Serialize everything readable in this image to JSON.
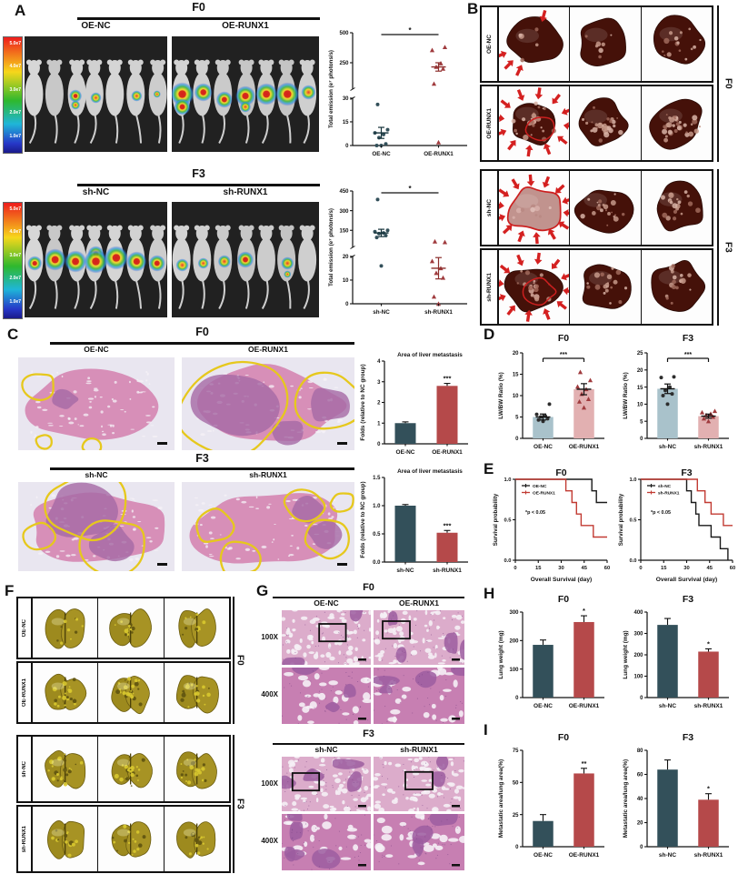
{
  "panelA": {
    "label": "A",
    "colorbar_ticks": [
      "5.0e7",
      "4.0e7",
      "3.0e7",
      "2.0e7",
      "1.0e7"
    ],
    "f0": {
      "title": "F0",
      "col_labels": [
        "OE-NC",
        "OE-RUNX1"
      ]
    },
    "f3": {
      "title": "F3",
      "col_labels": [
        "sh-NC",
        "sh-RUNX1"
      ]
    }
  },
  "panelB": {
    "label": "B",
    "groups": [
      {
        "side_label": "F0",
        "rows": [
          {
            "label": "OE-NC"
          },
          {
            "label": "OE-RUNX1"
          }
        ]
      },
      {
        "side_label": "F3",
        "rows": [
          {
            "label": "sh-NC"
          },
          {
            "label": "sh-RUNX1"
          }
        ]
      }
    ]
  },
  "panelC": {
    "label": "C",
    "f0": {
      "title": "F0",
      "col_labels": [
        "OE-NC",
        "OE-RUNX1"
      ]
    },
    "f3": {
      "title": "F3",
      "col_labels": [
        "sh-NC",
        "sh-RUNX1"
      ]
    }
  },
  "panelD": {
    "label": "D"
  },
  "panelE": {
    "label": "E"
  },
  "panelF": {
    "label": "F",
    "groups": [
      {
        "side_label": "F0",
        "rows": [
          {
            "label": "OE-NC"
          },
          {
            "label": "OE-RUNX1"
          }
        ]
      },
      {
        "side_label": "F3",
        "rows": [
          {
            "label": "sh-NC"
          },
          {
            "label": "sh-RUNX1"
          }
        ]
      }
    ]
  },
  "panelG": {
    "label": "G",
    "f0": {
      "title": "F0",
      "col_labels": [
        "OE-NC",
        "OE-RUNX1"
      ],
      "row_labels": [
        "100X",
        "400X"
      ]
    },
    "f3": {
      "title": "F3",
      "col_labels": [
        "sh-NC",
        "sh-RUNX1"
      ],
      "row_labels": [
        "100X",
        "400X"
      ]
    }
  },
  "panelH": {
    "label": "H"
  },
  "panelI": {
    "label": "I"
  },
  "colors": {
    "bar_teal": "#33505a",
    "bar_red": "#b5494a",
    "bar_teal_light": "#a9c2cb",
    "bar_red_light": "#e2b0b1",
    "point_dark": "#2d2d2d",
    "point_red": "#a03b3e",
    "km_black": "#1a1a1a",
    "km_red": "#c23b33",
    "arrow_red": "#d42020",
    "outline_yellow": "#e6c81c"
  },
  "chart_data": [
    {
      "id": "a_f0",
      "type": "scatter_break",
      "ylabel": "Total emission (e⁷ photons/s)",
      "categories": [
        "OE-NC",
        "OE-RUNX1"
      ],
      "lower_ticks": [
        0,
        15,
        30
      ],
      "upper_ticks": [
        250,
        500
      ],
      "lower_max": 30,
      "upper_max": 500,
      "sig": "*",
      "series": [
        {
          "name": "OE-NC",
          "marker": "circle",
          "points": [
            0,
            0,
            1,
            5,
            7,
            8,
            10,
            26
          ],
          "mean": 8,
          "sem": 3.5
        },
        {
          "name": "OE-RUNX1",
          "marker": "triangle",
          "points": [
            2,
            75,
            200,
            215,
            245,
            355,
            380
          ],
          "mean": 215,
          "sem": 35
        }
      ]
    },
    {
      "id": "a_f3",
      "type": "scatter_break",
      "ylabel": "Total emission (e⁷ photons/s)",
      "categories": [
        "sh-NC",
        "sh-RUNX1"
      ],
      "lower_ticks": [
        0,
        10,
        20
      ],
      "upper_ticks": [
        150,
        300,
        450
      ],
      "lower_max": 20,
      "upper_max": 450,
      "sig": "*",
      "series": [
        {
          "name": "sh-NC",
          "marker": "circle",
          "points": [
            16,
            95,
            110,
            125,
            130,
            140,
            150,
            385
          ],
          "mean": 130,
          "sem": 28
        },
        {
          "name": "sh-RUNX1",
          "marker": "triangle",
          "points": [
            0,
            3,
            11,
            13,
            15,
            18,
            60,
            65
          ],
          "mean": 15,
          "sem": 4.5
        }
      ]
    },
    {
      "id": "c_f0",
      "type": "bar",
      "chart_title": "Area of liver metastasis",
      "ylabel": "Folds (relative to NC group)",
      "categories": [
        "OE-NC",
        "OE-RUNX1"
      ],
      "values": [
        1.0,
        2.8
      ],
      "errors": [
        0.06,
        0.12
      ],
      "ylim": [
        0,
        4
      ],
      "yticks": [
        0,
        1,
        2,
        3,
        4
      ],
      "ytick_labels": [
        "0",
        "1",
        "2",
        "3",
        "4"
      ],
      "sig": "***",
      "sig_on": 1
    },
    {
      "id": "c_f3",
      "type": "bar",
      "chart_title": "Area of liver metastasis",
      "ylabel": "Folds (relative to NC group)",
      "categories": [
        "sh-NC",
        "sh-RUNX1"
      ],
      "values": [
        1.0,
        0.52
      ],
      "errors": [
        0.02,
        0.04
      ],
      "ylim": [
        0,
        1.5
      ],
      "yticks": [
        0,
        0.5,
        1.0,
        1.5
      ],
      "ytick_labels": [
        "0.0",
        "0.5",
        "1.0",
        "1.5"
      ],
      "sig": "***",
      "sig_on": 1
    },
    {
      "id": "d_f0",
      "type": "bar_scatter",
      "panel_title": "F0",
      "ylabel": "LW/BW Ratio (%)",
      "categories": [
        "OE-NC",
        "OE-RUNX1"
      ],
      "means": [
        5,
        11.5
      ],
      "sems": [
        0.7,
        1.3
      ],
      "points": [
        [
          4,
          4.3,
          4.6,
          5,
          5.2,
          5.6,
          8
        ],
        [
          7.2,
          8.6,
          9.2,
          10.4,
          11.5,
          12.1,
          13.6,
          15.5
        ]
      ],
      "ylim": [
        0,
        20
      ],
      "yticks": [
        0,
        5,
        10,
        15,
        20
      ],
      "ytick_labels": [
        "0",
        "5",
        "10",
        "15",
        "20"
      ],
      "sig": "***"
    },
    {
      "id": "d_f3",
      "type": "bar_scatter",
      "panel_title": "F3",
      "ylabel": "LW/BW Ratio (%)",
      "categories": [
        "sh-NC",
        "sh-RUNX1"
      ],
      "means": [
        14.5,
        6.5
      ],
      "sems": [
        1.4,
        0.6
      ],
      "points": [
        [
          10,
          12.5,
          13,
          14,
          15,
          17.8,
          18
        ],
        [
          5,
          5.8,
          6.3,
          6.8,
          7.2,
          7.6,
          8
        ]
      ],
      "ylim": [
        0,
        25
      ],
      "yticks": [
        0,
        5,
        10,
        15,
        20,
        25
      ],
      "ytick_labels": [
        "0",
        "5",
        "10",
        "15",
        "20",
        "25"
      ],
      "sig": "***"
    },
    {
      "id": "e_f0",
      "type": "km",
      "panel_title": "F0",
      "xlabel": "Overall Survival (day)",
      "ylabel": "Survival probability",
      "xlim": [
        0,
        60
      ],
      "xticks": [
        0,
        15,
        30,
        45,
        60
      ],
      "yticks": [
        "0.0",
        "0.5",
        "1.0"
      ],
      "p_text": "*p < 0.05",
      "series": [
        {
          "name": "OE-NC",
          "color": "#1a1a1a",
          "steps": [
            [
              0,
              1
            ],
            [
              50,
              1
            ],
            [
              50,
              0.857
            ],
            [
              53,
              0.857
            ],
            [
              53,
              0.714
            ],
            [
              60,
              0.714
            ]
          ]
        },
        {
          "name": "OE-RUNX1",
          "color": "#c23b33",
          "steps": [
            [
              0,
              1
            ],
            [
              33,
              1
            ],
            [
              33,
              0.857
            ],
            [
              37,
              0.857
            ],
            [
              37,
              0.714
            ],
            [
              40,
              0.714
            ],
            [
              40,
              0.571
            ],
            [
              43,
              0.571
            ],
            [
              43,
              0.429
            ],
            [
              51,
              0.429
            ],
            [
              51,
              0.286
            ],
            [
              60,
              0.286
            ]
          ]
        }
      ]
    },
    {
      "id": "e_f3",
      "type": "km",
      "panel_title": "F3",
      "xlabel": "Overall Survival (day)",
      "ylabel": "Survival probability",
      "xlim": [
        0,
        60
      ],
      "xticks": [
        0,
        15,
        30,
        45,
        60
      ],
      "yticks": [
        "0.0",
        "0.5",
        "1.0"
      ],
      "p_text": "*p < 0.05",
      "series": [
        {
          "name": "sh-NC",
          "color": "#1a1a1a",
          "steps": [
            [
              0,
              1
            ],
            [
              30,
              1
            ],
            [
              30,
              0.857
            ],
            [
              33,
              0.857
            ],
            [
              33,
              0.714
            ],
            [
              36,
              0.714
            ],
            [
              36,
              0.571
            ],
            [
              38,
              0.571
            ],
            [
              38,
              0.429
            ],
            [
              46,
              0.429
            ],
            [
              46,
              0.286
            ],
            [
              52,
              0.286
            ],
            [
              52,
              0.143
            ],
            [
              57,
              0.143
            ],
            [
              57,
              0
            ]
          ]
        },
        {
          "name": "sh-RUNX1",
          "color": "#c23b33",
          "steps": [
            [
              0,
              1
            ],
            [
              37,
              1
            ],
            [
              37,
              0.857
            ],
            [
              42,
              0.857
            ],
            [
              42,
              0.714
            ],
            [
              46,
              0.714
            ],
            [
              46,
              0.571
            ],
            [
              54,
              0.571
            ],
            [
              54,
              0.429
            ],
            [
              60,
              0.429
            ]
          ]
        }
      ]
    },
    {
      "id": "h_f0",
      "type": "bar",
      "panel_title": "F0",
      "ylabel": "Lung weight (mg)",
      "categories": [
        "OE-NC",
        "OE-RUNX1"
      ],
      "values": [
        185,
        265
      ],
      "errors": [
        17,
        22
      ],
      "ylim": [
        0,
        300
      ],
      "yticks": [
        0,
        100,
        200,
        300
      ],
      "ytick_labels": [
        "0",
        "100",
        "200",
        "300"
      ],
      "sig": "*",
      "sig_on": 1
    },
    {
      "id": "h_f3",
      "type": "bar",
      "panel_title": "F3",
      "ylabel": "Lung weight (mg)",
      "categories": [
        "sh-NC",
        "sh-RUNX1"
      ],
      "values": [
        340,
        215
      ],
      "errors": [
        30,
        13
      ],
      "ylim": [
        0,
        400
      ],
      "yticks": [
        0,
        100,
        200,
        300,
        400
      ],
      "ytick_labels": [
        "0",
        "100",
        "200",
        "300",
        "400"
      ],
      "sig": "*",
      "sig_on": 1
    },
    {
      "id": "i_f0",
      "type": "bar",
      "panel_title": "F0",
      "ylabel": "Metastatic area/lung area(%)",
      "categories": [
        "OE-NC",
        "OE-RUNX1"
      ],
      "values": [
        20,
        57
      ],
      "errors": [
        5,
        4
      ],
      "ylim": [
        0,
        75
      ],
      "yticks": [
        0,
        25,
        50,
        75
      ],
      "ytick_labels": [
        "0",
        "25",
        "50",
        "75"
      ],
      "sig": "**",
      "sig_on": 1
    },
    {
      "id": "i_f3",
      "type": "bar",
      "panel_title": "F3",
      "ylabel": "Metastatic area/lung area(%)",
      "categories": [
        "sh-NC",
        "sh-RUNX1"
      ],
      "values": [
        64,
        39
      ],
      "errors": [
        8,
        5
      ],
      "ylim": [
        0,
        80
      ],
      "yticks": [
        0,
        20,
        40,
        60,
        80
      ],
      "ytick_labels": [
        "0",
        "20",
        "40",
        "60",
        "80"
      ],
      "sig": "*",
      "sig_on": 1
    }
  ]
}
